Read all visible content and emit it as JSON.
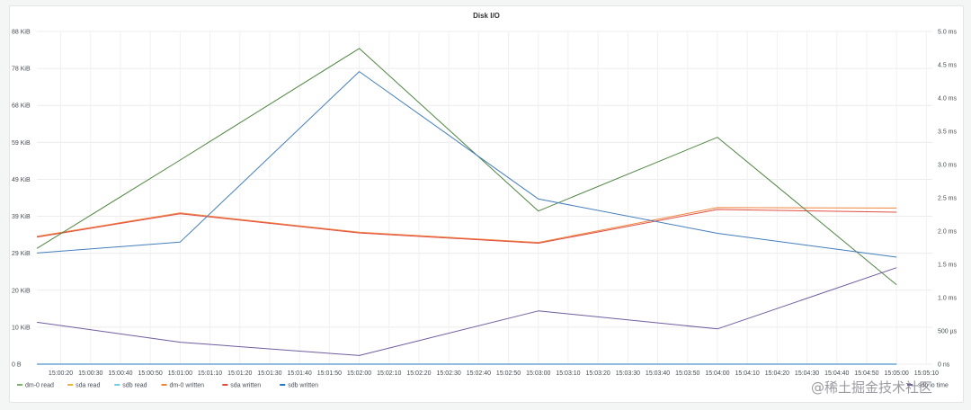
{
  "panel": {
    "title": "Disk I/O"
  },
  "watermark": "@稀土掘金技术社区",
  "chart_data": {
    "type": "line",
    "title": "Disk I/O",
    "x_ticks": [
      "15:00:20",
      "15:00:30",
      "15:00:40",
      "15:00:50",
      "15:01:00",
      "15:01:10",
      "15:01:20",
      "15:01:30",
      "15:01:40",
      "15:01:50",
      "15:02:00",
      "15:02:10",
      "15:02:20",
      "15:02:30",
      "15:02:40",
      "15:02:50",
      "15:03:00",
      "15:03:10",
      "15:03:20",
      "15:03:30",
      "15:03:40",
      "15:03:50",
      "15:04:00",
      "15:04:10",
      "15:04:20",
      "15:04:30",
      "15:04:40",
      "15:04:50",
      "15:05:00",
      "15:05:10"
    ],
    "xlim": [
      "15:00:12",
      "15:05:12"
    ],
    "y_left": {
      "ticks": [
        "0 B",
        "10 KiB",
        "20 KiB",
        "29 KiB",
        "39 KiB",
        "49 KiB",
        "59 KiB",
        "68 KiB",
        "78 KiB",
        "88 KiB"
      ],
      "ylim": [
        0,
        88
      ]
    },
    "y_right": {
      "ticks": [
        "0 ns",
        "500 µs",
        "1.0 ms",
        "1.5 ms",
        "2.0 ms",
        "2.5 ms",
        "3.0 ms",
        "3.5 ms",
        "4.0 ms",
        "4.5 ms",
        "5.0 ms"
      ],
      "ylim": [
        0,
        5.0
      ]
    },
    "grid": true,
    "legend_position": "bottom-left",
    "series": [
      {
        "name": "dm-0 read",
        "color": "#7eb26d",
        "axis": "left",
        "x": [
          "15:00:12",
          "15:01:00",
          "15:02:00",
          "15:03:00",
          "15:04:00",
          "15:05:00"
        ],
        "values": [
          0,
          0,
          0,
          0,
          0,
          0
        ]
      },
      {
        "name": "sda read",
        "color": "#eab839",
        "axis": "left",
        "x": [
          "15:00:12",
          "15:01:00",
          "15:02:00",
          "15:03:00",
          "15:04:00",
          "15:05:00"
        ],
        "values": [
          0,
          0,
          0,
          0,
          0,
          0
        ]
      },
      {
        "name": "sdb read",
        "color": "#6ed0e0",
        "axis": "left",
        "x": [
          "15:00:12",
          "15:01:00",
          "15:02:00",
          "15:03:00",
          "15:04:00",
          "15:05:00"
        ],
        "values": [
          0,
          0,
          0,
          0,
          0,
          0
        ]
      },
      {
        "name": "dm-0 written",
        "color": "#ef843c",
        "axis": "left",
        "x": [
          "15:00:12",
          "15:01:00",
          "15:02:00",
          "15:03:00",
          "15:04:00",
          "15:05:00"
        ],
        "values": [
          33.8,
          40.0,
          34.9,
          32.2,
          41.4,
          41.3
        ]
      },
      {
        "name": "sda written",
        "color": "#e24d42",
        "axis": "left",
        "x": [
          "15:00:12",
          "15:01:00",
          "15:02:00",
          "15:03:00",
          "15:04:00",
          "15:05:00"
        ],
        "values": [
          33.6,
          39.8,
          34.7,
          32.0,
          40.9,
          40.2
        ]
      },
      {
        "name": "sdb written",
        "color": "#1f78c1",
        "axis": "left",
        "x": [
          "15:00:12",
          "15:01:00",
          "15:02:00",
          "15:03:00",
          "15:04:00",
          "15:05:00"
        ],
        "values": [
          0,
          0,
          0,
          0,
          0,
          0
        ]
      },
      {
        "name": "",
        "color": "#508642",
        "axis": "left",
        "x": [
          "15:00:12",
          "15:01:00",
          "15:02:00",
          "15:03:00",
          "15:04:00",
          "15:05:00"
        ],
        "values": [
          30.6,
          54.0,
          83.5,
          40.5,
          60.0,
          21.0
        ]
      },
      {
        "name": "",
        "color": "#447ebc",
        "axis": "left",
        "x": [
          "15:00:12",
          "15:01:00",
          "15:02:00",
          "15:03:00",
          "15:04:00",
          "15:05:00"
        ],
        "values": [
          29.4,
          32.3,
          77.4,
          43.7,
          34.6,
          28.3
        ]
      },
      {
        "name": "",
        "color": "#705da0",
        "axis": "right",
        "x": [
          "15:00:12",
          "15:01:00",
          "15:02:00",
          "15:03:00",
          "15:04:00",
          "15:05:00"
        ],
        "values": [
          0.63,
          0.33,
          0.13,
          0.8,
          0.53,
          1.45
        ]
      }
    ],
    "legend_overflow": [
      {
        "name": "sdb io time",
        "color": "#705da0"
      }
    ]
  }
}
